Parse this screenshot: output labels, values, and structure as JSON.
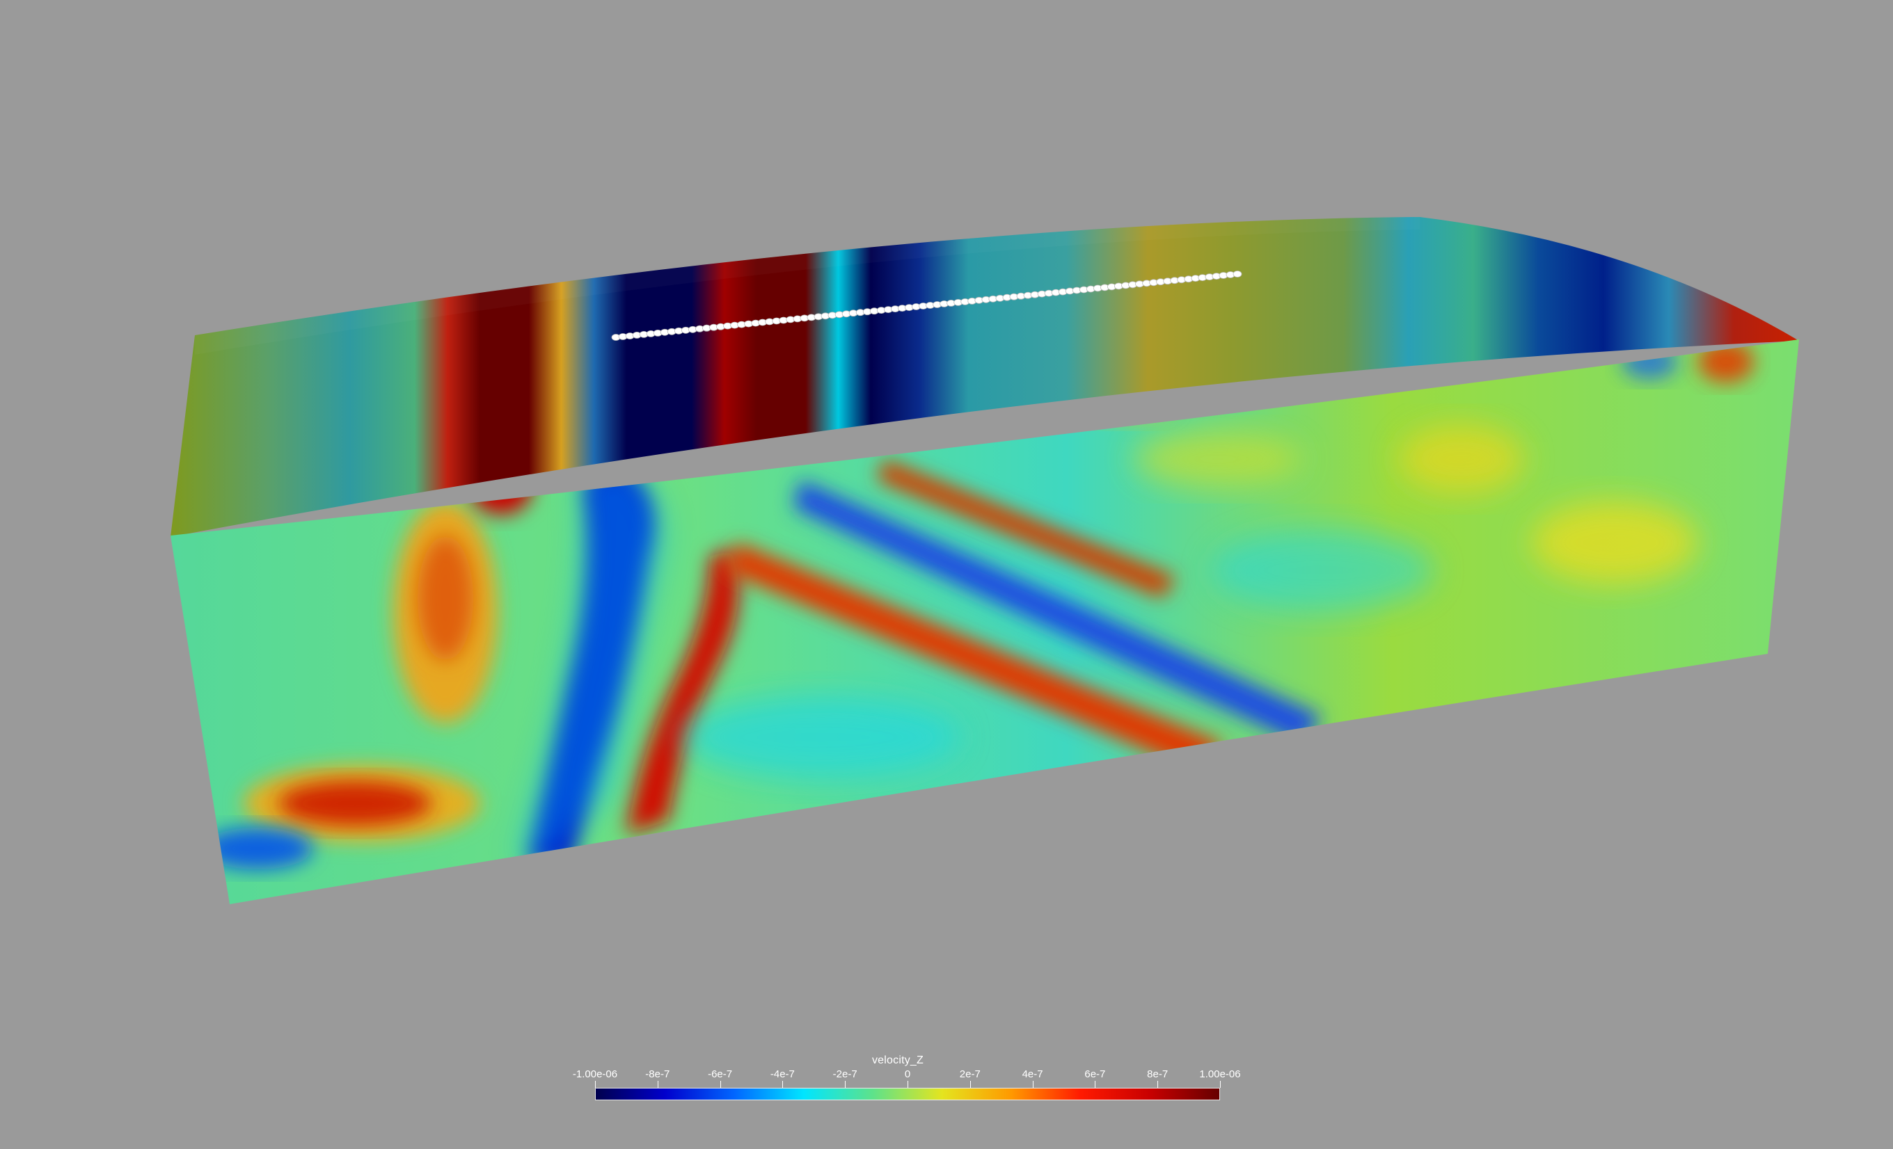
{
  "colorbar": {
    "title": "velocity_Z",
    "ticks": [
      "-1.00e-06",
      "-8e-7",
      "-6e-7",
      "-4e-7",
      "-2e-7",
      "0",
      "2e-7",
      "4e-7",
      "6e-7",
      "8e-7",
      "1.00e-06"
    ],
    "range": [
      -1e-06,
      1e-06
    ],
    "colormap": [
      "#00004d",
      "#0000cc",
      "#0066ff",
      "#00e5ff",
      "#5ee28a",
      "#e4e41f",
      "#ff9900",
      "#ff1a00",
      "#c80000",
      "#660000"
    ]
  },
  "colors": {
    "background": "#9a9a9a",
    "receivers": "#ffffff"
  }
}
